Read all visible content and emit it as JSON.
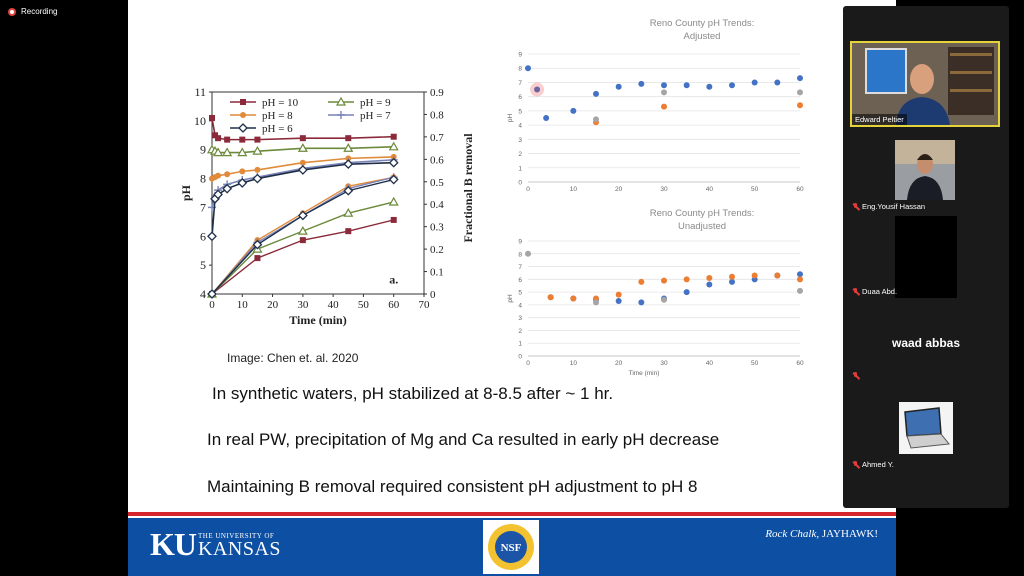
{
  "recording": {
    "label": "Recording"
  },
  "slide": {
    "image_credit": "Image: Chen et. al. 2020",
    "bullets": [
      "In synthetic waters, pH stabilized at 8-8.5 after ~ 1 hr.",
      "In real PW, precipitation of Mg and Ca resulted in early pH decrease",
      "Maintaining B removal required consistent pH adjustment to pH 8"
    ],
    "footer": {
      "ku_letters": "KU",
      "ku_small": "THE UNIVERSITY OF",
      "ku_big": "KANSAS",
      "nsf_label": "NSF",
      "rock_chalk_1": "Rock Chalk, ",
      "rock_chalk_2": "JAYHAWK!"
    }
  },
  "chart_data": [
    {
      "type": "line",
      "title": "",
      "panel_label": "a.",
      "xlabel": "Time (min)",
      "ylabel": "pH",
      "y2label": "Fractional B removal",
      "xlim": [
        0,
        70
      ],
      "ylim": [
        4,
        11
      ],
      "y2lim": [
        0,
        0.9
      ],
      "xticks": [
        0,
        10,
        20,
        30,
        40,
        50,
        60,
        70
      ],
      "yticks": [
        4,
        5,
        6,
        7,
        8,
        9,
        10,
        11
      ],
      "y2ticks": [
        0,
        0.1,
        0.2,
        0.3,
        0.4,
        0.5,
        0.6,
        0.7,
        0.8,
        0.9
      ],
      "x": [
        0,
        1,
        2,
        5,
        10,
        15,
        30,
        45,
        60
      ],
      "legend": [
        "pH = 10",
        "pH = 9",
        "pH = 8",
        "pH = 7",
        "pH = 6"
      ],
      "series": [
        {
          "name": "pH = 10",
          "color": "#8b2a3a",
          "marker": "square",
          "values": [
            10.1,
            9.5,
            9.4,
            9.35,
            9.35,
            9.35,
            9.4,
            9.4,
            9.45
          ]
        },
        {
          "name": "pH = 9",
          "color": "#6b8a3a",
          "marker": "triangle",
          "values": [
            9.0,
            8.95,
            8.9,
            8.9,
            8.9,
            8.95,
            9.05,
            9.05,
            9.1
          ]
        },
        {
          "name": "pH = 8",
          "color": "#e08a3a",
          "marker": "circle",
          "values": [
            8.0,
            8.05,
            8.1,
            8.15,
            8.25,
            8.3,
            8.55,
            8.7,
            8.75
          ]
        },
        {
          "name": "pH = 7",
          "color": "#7a84b8",
          "marker": "plus",
          "values": [
            7.0,
            7.4,
            7.6,
            7.8,
            7.95,
            8.05,
            8.35,
            8.55,
            8.65
          ]
        },
        {
          "name": "pH = 6",
          "color": "#1f2f4a",
          "marker": "diamond",
          "values": [
            6.0,
            7.3,
            7.45,
            7.65,
            7.85,
            8.0,
            8.3,
            8.5,
            8.55
          ]
        }
      ],
      "removal_series": [
        {
          "name": "pH = 10",
          "color": "#8b2a3a",
          "x": [
            0,
            15,
            30,
            45,
            60
          ],
          "values": [
            0,
            0.16,
            0.24,
            0.28,
            0.33
          ]
        },
        {
          "name": "pH = 9",
          "color": "#6b8a3a",
          "x": [
            0,
            15,
            30,
            45,
            60
          ],
          "values": [
            0,
            0.2,
            0.28,
            0.36,
            0.41
          ]
        },
        {
          "name": "pH = 8",
          "color": "#e08a3a",
          "x": [
            0,
            15,
            30,
            45,
            60
          ],
          "values": [
            0,
            0.24,
            0.36,
            0.48,
            0.52
          ]
        },
        {
          "name": "pH = 7",
          "color": "#7a84b8",
          "x": [
            0,
            15,
            30,
            45,
            60
          ],
          "values": [
            0,
            0.23,
            0.35,
            0.47,
            0.52
          ]
        },
        {
          "name": "pH = 6",
          "color": "#1f2f4a",
          "x": [
            0,
            15,
            30,
            45,
            60
          ],
          "values": [
            0,
            0.22,
            0.35,
            0.46,
            0.51
          ]
        }
      ]
    },
    {
      "type": "scatter",
      "title": "Reno County pH Trends:",
      "subtitle": "Adjusted",
      "xlabel": "",
      "ylabel": "pH",
      "xlim": [
        0,
        60
      ],
      "ylim": [
        0,
        9
      ],
      "xticks": [
        0,
        10,
        20,
        30,
        40,
        50,
        60
      ],
      "yticks": [
        0,
        1,
        2,
        3,
        4,
        5,
        6,
        7,
        8,
        9
      ],
      "series": [
        {
          "name": "blue",
          "color": "#4472c4",
          "x": [
            0,
            2,
            4,
            10,
            15,
            20,
            25,
            30,
            35,
            40,
            45,
            50,
            55,
            60
          ],
          "values": [
            8.0,
            6.5,
            4.5,
            5.0,
            6.2,
            6.7,
            6.9,
            6.8,
            6.8,
            6.7,
            6.8,
            7.0,
            7.0,
            7.3
          ]
        },
        {
          "name": "orange",
          "color": "#ed7d31",
          "x": [
            15,
            30,
            60
          ],
          "values": [
            4.2,
            5.3,
            5.4
          ]
        },
        {
          "name": "gray",
          "color": "#a5a5a5",
          "x": [
            15,
            30,
            60
          ],
          "values": [
            4.4,
            6.3,
            6.3
          ]
        }
      ]
    },
    {
      "type": "scatter",
      "title": "Reno County pH Trends:",
      "subtitle": "Unadjusted",
      "xlabel": "Time (min)",
      "ylabel": "pH",
      "xlim": [
        0,
        60
      ],
      "ylim": [
        0,
        9
      ],
      "xticks": [
        0,
        10,
        20,
        30,
        40,
        50,
        60
      ],
      "yticks": [
        0,
        1,
        2,
        3,
        4,
        5,
        6,
        7,
        8,
        9
      ],
      "series": [
        {
          "name": "blue",
          "color": "#4472c4",
          "x": [
            5,
            10,
            15,
            20,
            25,
            30,
            35,
            40,
            45,
            50,
            55,
            60
          ],
          "values": [
            4.6,
            4.5,
            4.4,
            4.3,
            4.2,
            4.5,
            5.0,
            5.6,
            5.8,
            6.0,
            6.3,
            6.4
          ]
        },
        {
          "name": "orange",
          "color": "#ed7d31",
          "x": [
            5,
            10,
            15,
            20,
            25,
            30,
            35,
            40,
            45,
            50,
            55,
            60
          ],
          "values": [
            4.6,
            4.5,
            4.5,
            4.8,
            5.8,
            5.9,
            6.0,
            6.1,
            6.2,
            6.3,
            6.3,
            6.0
          ]
        },
        {
          "name": "gray",
          "color": "#a5a5a5",
          "x": [
            0,
            15,
            30,
            60
          ],
          "values": [
            8.0,
            4.2,
            4.4,
            5.1
          ]
        }
      ]
    }
  ],
  "participants": [
    {
      "name": "Edward Peltier",
      "muted": false,
      "active": true
    },
    {
      "name": "Eng.Yousif Hassan",
      "muted": true,
      "active": false
    },
    {
      "name": "Duaa Abd.",
      "muted": true,
      "active": false
    },
    {
      "name": "waad abbas",
      "muted": true,
      "active": false
    },
    {
      "name": "Ahmed Y.",
      "muted": true,
      "active": false
    }
  ],
  "colors": {
    "accent": "#d6262d",
    "ku_blue": "#0c4fa3",
    "active_border": "#e5d33a"
  }
}
